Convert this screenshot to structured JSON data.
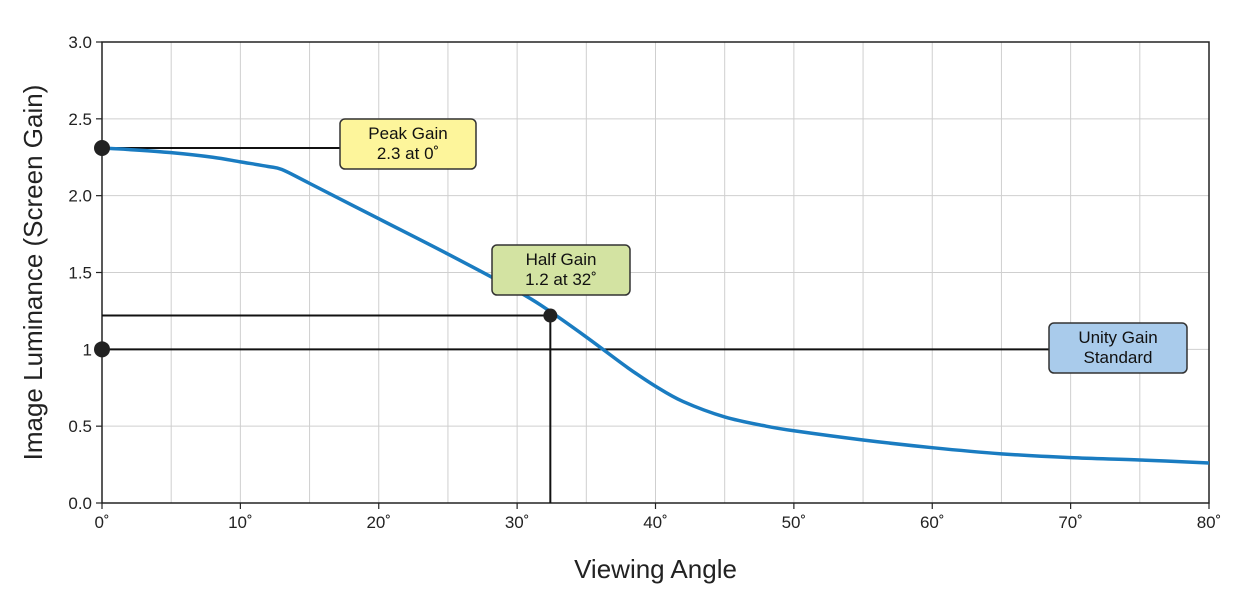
{
  "chart_data": {
    "type": "line",
    "xlabel": "Viewing Angle",
    "ylabel": "Image Luminance (Screen Gain)",
    "xlim": [
      0,
      80
    ],
    "ylim": [
      0,
      3.0
    ],
    "x_ticks": [
      {
        "value": 0,
        "label": "0˚"
      },
      {
        "value": 10,
        "label": "10˚"
      },
      {
        "value": 20,
        "label": "20˚"
      },
      {
        "value": 30,
        "label": "30˚"
      },
      {
        "value": 40,
        "label": "40˚"
      },
      {
        "value": 50,
        "label": "50˚"
      },
      {
        "value": 60,
        "label": "60˚"
      },
      {
        "value": 70,
        "label": "70˚"
      },
      {
        "value": 80,
        "label": "80˚"
      }
    ],
    "y_ticks": [
      {
        "value": 0,
        "label": "0.0"
      },
      {
        "value": 0.5,
        "label": "0.5"
      },
      {
        "value": 1,
        "label": "1"
      },
      {
        "value": 1.5,
        "label": "1.5"
      },
      {
        "value": 2,
        "label": "2.0"
      },
      {
        "value": 2.5,
        "label": "2.5"
      },
      {
        "value": 3,
        "label": "3.0"
      }
    ],
    "grid": true,
    "grid_x_step": 5,
    "grid_y_step": 0.5,
    "series": [
      {
        "color": "#1a7cc1",
        "x": [
          0,
          2,
          5,
          8,
          10,
          12,
          13,
          15,
          20,
          25,
          30,
          32,
          35,
          38,
          40,
          42,
          45,
          48,
          50,
          55,
          60,
          65,
          70,
          75,
          80
        ],
        "y": [
          2.31,
          2.3,
          2.28,
          2.25,
          2.22,
          2.19,
          2.17,
          2.08,
          1.85,
          1.62,
          1.38,
          1.27,
          1.08,
          0.88,
          0.76,
          0.66,
          0.56,
          0.5,
          0.47,
          0.41,
          0.36,
          0.32,
          0.295,
          0.28,
          0.26
        ]
      }
    ],
    "annotations": [
      {
        "id": "peak-gain",
        "lines": [
          "Peak Gain",
          "2.3 at 0˚"
        ],
        "fill": "#fdf59b",
        "point": {
          "x": 0,
          "y": 2.31
        },
        "guide": "horizontal"
      },
      {
        "id": "half-gain",
        "lines": [
          "Half Gain",
          "1.2 at 32˚"
        ],
        "fill": "#d3e3a2",
        "point": {
          "x": 32.4,
          "y": 1.22
        },
        "guide": "both"
      },
      {
        "id": "unity-gain",
        "lines": [
          "Unity Gain",
          "Standard"
        ],
        "fill": "#a9cbeb",
        "point": {
          "x": 0,
          "y": 1.0
        },
        "guide": "horizontal"
      }
    ]
  }
}
